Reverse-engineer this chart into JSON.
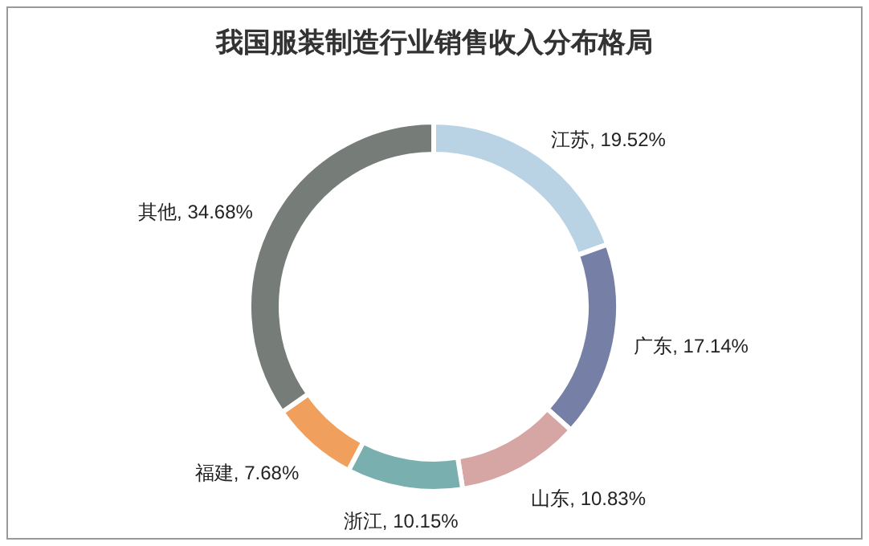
{
  "chart_data": {
    "type": "donut",
    "title": "我国服装制造行业销售收入分布格局",
    "categories": [
      "江苏",
      "广东",
      "山东",
      "浙江",
      "福建",
      "其他"
    ],
    "values": [
      19.52,
      17.14,
      10.83,
      10.15,
      7.68,
      34.68
    ],
    "colors": [
      "#b9d3e4",
      "#767fa5",
      "#d6a6a4",
      "#7aafb0",
      "#f0a05c",
      "#767c78"
    ],
    "value_labels": [
      ", 19.52%",
      ", 17.14%",
      ", 10.83%",
      ", 10.15%",
      ", 7.68%",
      ", 34.68%"
    ]
  }
}
